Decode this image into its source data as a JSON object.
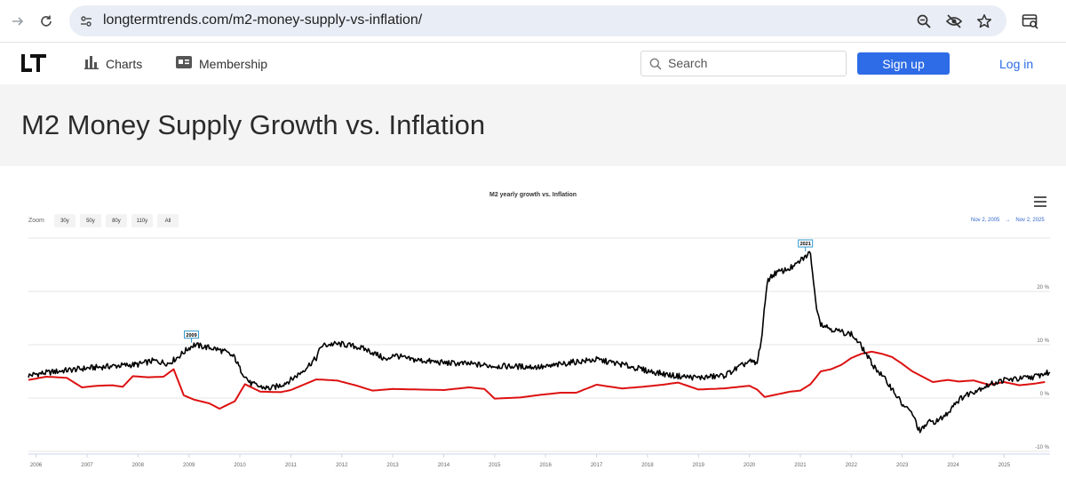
{
  "browser": {
    "url": "longtermtrends.com/m2-money-supply-vs-inflation/"
  },
  "header": {
    "nav_charts": "Charts",
    "nav_membership": "Membership",
    "search_placeholder": "Search",
    "signup_label": "Sign up",
    "login_label": "Log in"
  },
  "page": {
    "title": "M2 Money Supply Growth vs. Inflation"
  },
  "chart_ui": {
    "zoom_label": "Zoom",
    "zoom_options": [
      "30y",
      "50y",
      "80y",
      "110y",
      "All"
    ],
    "range_from": "Nov 2, 2005",
    "range_sep": "→",
    "range_to": "Nov 2, 2025"
  },
  "colors": {
    "m2": "#000000",
    "inflation": "#dd1111",
    "accent": "#2d6ce6",
    "flag_border": "#3399cc"
  },
  "chart_data": {
    "type": "line",
    "title": "M2 yearly growth vs. Inflation",
    "xlabel": "",
    "ylabel": "",
    "xlim": [
      2005.85,
      2025.9
    ],
    "ylim": [
      -10,
      30
    ],
    "yticks": [
      -10,
      0,
      10,
      20
    ],
    "ytick_labels": [
      "-10 %",
      "0 %",
      "10 %",
      "20 %"
    ],
    "xticks": [
      "2006",
      "2007",
      "2008",
      "2009",
      "2010",
      "2011",
      "2012",
      "2013",
      "2014",
      "2015",
      "2016",
      "2017",
      "2018",
      "2019",
      "2020",
      "2021",
      "2022",
      "2023",
      "2024",
      "2025"
    ],
    "grid": true,
    "flags": [
      {
        "label": "2009",
        "x": 2009.05,
        "y": 10.4
      },
      {
        "label": "2021",
        "x": 2021.1,
        "y": 27.5
      }
    ],
    "series": [
      {
        "name": "M2 yearly growth",
        "x": [
          2005.85,
          2006.0,
          2006.5,
          2007.0,
          2007.5,
          2008.0,
          2008.3,
          2008.6,
          2008.8,
          2009.0,
          2009.1,
          2009.3,
          2009.5,
          2009.7,
          2009.9,
          2010.0,
          2010.2,
          2010.4,
          2010.6,
          2010.8,
          2011.0,
          2011.2,
          2011.4,
          2011.5,
          2011.6,
          2011.8,
          2012.0,
          2012.3,
          2012.5,
          2012.7,
          2012.9,
          2013.0,
          2013.3,
          2013.6,
          2014.0,
          2014.5,
          2015.0,
          2015.5,
          2016.0,
          2016.5,
          2017.0,
          2017.5,
          2018.0,
          2018.5,
          2019.0,
          2019.5,
          2019.8,
          2020.0,
          2020.15,
          2020.25,
          2020.35,
          2020.5,
          2020.7,
          2020.9,
          2021.0,
          2021.1,
          2021.2,
          2021.3,
          2021.4,
          2021.6,
          2021.8,
          2022.0,
          2022.2,
          2022.4,
          2022.6,
          2022.8,
          2023.0,
          2023.2,
          2023.25,
          2023.35,
          2023.5,
          2023.7,
          2023.9,
          2024.0,
          2024.2,
          2024.5,
          2024.8,
          2025.0,
          2025.3,
          2025.6,
          2025.8,
          2025.9
        ],
        "values": [
          4.2,
          4.5,
          5.1,
          5.6,
          6.0,
          6.3,
          7.0,
          6.5,
          7.8,
          9.4,
          10.0,
          9.6,
          9.3,
          8.7,
          7.6,
          5.5,
          2.8,
          2.1,
          1.8,
          2.4,
          3.4,
          4.8,
          6.6,
          7.5,
          9.8,
          10.1,
          10.1,
          9.6,
          9.0,
          8.1,
          7.0,
          8.2,
          7.3,
          7.0,
          6.6,
          6.4,
          6.0,
          5.9,
          5.8,
          6.7,
          7.2,
          6.3,
          5.1,
          4.2,
          3.8,
          4.2,
          5.8,
          6.9,
          6.4,
          12.0,
          22.0,
          23.4,
          24.0,
          24.8,
          25.8,
          26.5,
          27.3,
          18.0,
          14.0,
          13.0,
          12.4,
          12.0,
          9.7,
          6.5,
          4.2,
          1.8,
          -1.2,
          -2.9,
          -4.2,
          -6.4,
          -4.6,
          -4.3,
          -2.8,
          -1.2,
          0.3,
          1.7,
          2.8,
          3.4,
          3.6,
          4.0,
          4.6,
          4.8
        ]
      },
      {
        "name": "Inflation",
        "x": [
          2005.85,
          2006.2,
          2006.6,
          2006.9,
          2007.2,
          2007.5,
          2007.7,
          2007.9,
          2008.2,
          2008.5,
          2008.7,
          2008.9,
          2009.1,
          2009.4,
          2009.6,
          2009.9,
          2010.1,
          2010.4,
          2010.8,
          2011.0,
          2011.5,
          2011.9,
          2012.3,
          2012.6,
          2013.0,
          2013.5,
          2014.0,
          2014.5,
          2014.8,
          2015.0,
          2015.5,
          2015.9,
          2016.3,
          2016.6,
          2017.0,
          2017.5,
          2017.9,
          2018.3,
          2018.6,
          2019.0,
          2019.5,
          2020.0,
          2020.15,
          2020.3,
          2020.5,
          2020.8,
          2021.0,
          2021.2,
          2021.4,
          2021.6,
          2021.8,
          2022.0,
          2022.2,
          2022.4,
          2022.6,
          2022.8,
          2023.0,
          2023.2,
          2023.4,
          2023.6,
          2023.9,
          2024.1,
          2024.4,
          2024.7,
          2025.0,
          2025.3,
          2025.6,
          2025.8
        ],
        "values": [
          3.4,
          4.0,
          3.8,
          2.0,
          2.3,
          2.4,
          2.1,
          4.1,
          3.9,
          4.0,
          5.4,
          0.5,
          -0.3,
          -1.0,
          -2.0,
          -0.6,
          2.6,
          1.2,
          1.1,
          1.5,
          3.5,
          3.3,
          2.3,
          1.4,
          1.7,
          1.6,
          1.5,
          2.0,
          1.7,
          -0.1,
          0.1,
          0.6,
          1.0,
          1.0,
          2.5,
          1.8,
          2.1,
          2.5,
          2.9,
          1.6,
          1.8,
          2.3,
          1.6,
          0.2,
          0.6,
          1.2,
          1.4,
          2.6,
          5.0,
          5.4,
          6.2,
          7.5,
          8.3,
          8.7,
          8.3,
          7.7,
          6.4,
          5.0,
          4.0,
          3.0,
          3.4,
          3.1,
          3.3,
          2.5,
          3.0,
          2.4,
          2.7,
          3.0
        ]
      }
    ]
  }
}
